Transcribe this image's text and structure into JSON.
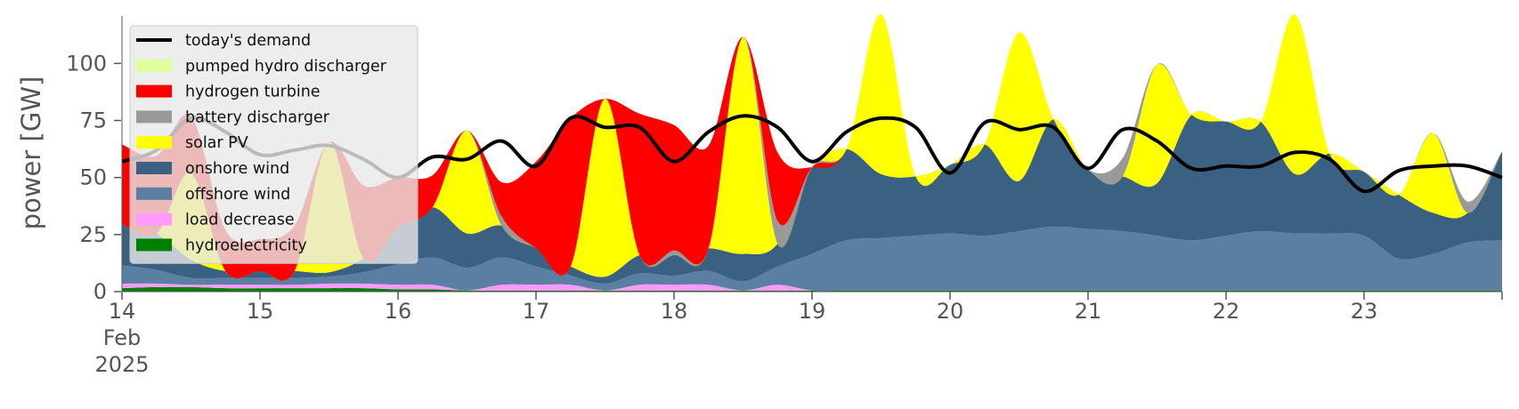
{
  "chart_data": {
    "type": "area",
    "title": "",
    "xlabel": "",
    "ylabel": "power [GW]",
    "ylim": [
      0,
      120
    ],
    "y_ticks": [
      0,
      25,
      50,
      75,
      100
    ],
    "x_range": [
      "2025-02-14T00:00",
      "2025-02-24T00:00"
    ],
    "x_tick_labels": [
      {
        "at": "2025-02-14",
        "lines": [
          "14",
          "Feb",
          "2025"
        ]
      },
      {
        "at": "2025-02-15",
        "lines": [
          "15"
        ]
      },
      {
        "at": "2025-02-16",
        "lines": [
          "16"
        ]
      },
      {
        "at": "2025-02-17",
        "lines": [
          "17"
        ]
      },
      {
        "at": "2025-02-18",
        "lines": [
          "18"
        ]
      },
      {
        "at": "2025-02-19",
        "lines": [
          "19"
        ]
      },
      {
        "at": "2025-02-20",
        "lines": [
          "20"
        ]
      },
      {
        "at": "2025-02-21",
        "lines": [
          "21"
        ]
      },
      {
        "at": "2025-02-22",
        "lines": [
          "22"
        ]
      },
      {
        "at": "2025-02-23",
        "lines": [
          "23"
        ]
      }
    ],
    "grid": false,
    "legend_position": "top-left",
    "time_days": [
      0,
      0.25,
      0.5,
      0.75,
      1,
      1.25,
      1.5,
      1.75,
      2,
      2.25,
      2.5,
      2.75,
      3,
      3.25,
      3.5,
      3.75,
      4,
      4.25,
      4.5,
      4.75,
      5,
      5.25,
      5.5,
      5.75,
      6,
      6.25,
      6.5,
      6.75,
      7,
      7.25,
      7.5,
      7.75,
      8,
      8.25,
      8.5,
      8.75,
      9,
      9.25,
      9.5,
      9.75,
      10
    ],
    "stack_order": [
      "hydroelectricity",
      "load decrease",
      "offshore wind",
      "onshore wind",
      "solar PV",
      "battery discharger",
      "hydrogen turbine",
      "pumped hydro discharger"
    ],
    "series": [
      {
        "name": "hydroelectricity",
        "color": "#008000",
        "values": [
          1.5,
          2,
          2,
          1.5,
          1.5,
          1.5,
          1.5,
          1.5,
          1,
          1,
          0.5,
          0.5,
          0.5,
          0.5,
          0.5,
          0.5,
          0.5,
          0.5,
          0.5,
          0.5,
          0.5,
          0.5,
          0.5,
          0.5,
          0.5,
          0.5,
          0.5,
          0.5,
          0.5,
          0.5,
          0.5,
          0.5,
          0.5,
          0.5,
          0.5,
          0.5,
          0.5,
          0.5,
          0.5,
          0.5,
          0.5
        ]
      },
      {
        "name": "load decrease",
        "color": "#ff99ff",
        "values": [
          2,
          1.5,
          1,
          1.5,
          1.5,
          1.5,
          2,
          2,
          2,
          2,
          0,
          2.5,
          2.5,
          2.5,
          0,
          2.5,
          2.5,
          2.5,
          0,
          2.5,
          0,
          0,
          0,
          0,
          0,
          0,
          0,
          0,
          0,
          0,
          0,
          0,
          0,
          0,
          0,
          0,
          0,
          0,
          0,
          0,
          0
        ]
      },
      {
        "name": "offshore wind",
        "color": "#5b7fa3",
        "values": [
          8,
          6,
          3,
          3,
          3,
          3,
          3,
          5,
          9,
          12,
          10,
          12,
          8,
          4,
          3,
          5,
          4,
          6,
          4,
          8,
          16,
          22,
          23,
          24,
          25,
          24,
          26,
          28,
          27,
          26,
          24,
          22,
          24,
          26,
          25,
          25,
          24,
          14,
          16,
          21,
          22
        ]
      },
      {
        "name": "onshore wind",
        "color": "#3b6182",
        "values": [
          18,
          16,
          8,
          3,
          3,
          3,
          2,
          6,
          16,
          22,
          15,
          14,
          8,
          4,
          3,
          8,
          9,
          10,
          12,
          10,
          38,
          40,
          28,
          26,
          30,
          40,
          22,
          47,
          26,
          24,
          23,
          55,
          50,
          48,
          26,
          35,
          28,
          28,
          18,
          13,
          39
        ]
      },
      {
        "name": "solar PV",
        "color": "#ffff00",
        "values": [
          0,
          0,
          38,
          0,
          0,
          0,
          57,
          0,
          0,
          0,
          45,
          0,
          0,
          0,
          78,
          0,
          0,
          0,
          95,
          0,
          0,
          0,
          70,
          0,
          0,
          0,
          65,
          0,
          0,
          0,
          52,
          0,
          0,
          0,
          70,
          0,
          0,
          0,
          35,
          0,
          0
        ]
      },
      {
        "name": "battery discharger",
        "color": "#999999",
        "values": [
          0,
          0,
          0,
          0,
          0,
          0,
          0,
          0,
          0,
          0,
          0,
          4,
          0,
          0,
          0,
          0,
          2,
          0,
          0,
          10,
          0,
          0,
          0,
          0,
          0,
          0,
          0,
          0,
          0,
          8,
          0,
          0,
          0,
          0,
          0,
          0,
          0,
          0,
          0,
          5,
          0
        ]
      },
      {
        "name": "hydrogen turbine",
        "color": "#ff0000",
        "values": [
          35,
          34,
          25,
          18,
          14,
          20,
          0,
          32,
          22,
          14,
          0,
          15,
          38,
          65,
          0,
          62,
          55,
          45,
          0,
          30,
          0,
          0,
          0,
          0,
          0,
          0,
          0,
          0,
          0,
          0,
          0,
          0,
          0,
          0,
          0,
          0,
          0,
          0,
          0,
          0,
          0
        ]
      },
      {
        "name": "pumped hydro discharger",
        "color": "#dfff9e",
        "values": [
          0,
          0,
          0,
          0,
          0,
          0,
          0,
          0,
          0,
          0,
          0,
          0,
          0,
          0,
          0,
          0,
          0,
          0,
          0,
          0,
          0,
          0,
          0,
          0,
          0,
          0,
          0,
          0,
          0,
          0,
          0,
          0,
          0,
          0,
          0,
          0,
          0,
          0,
          0,
          0,
          0
        ]
      },
      {
        "name": "today's demand",
        "type": "line",
        "color": "#000000",
        "values": [
          57,
          62,
          76,
          70,
          60,
          62,
          64,
          58,
          50,
          59,
          58,
          66,
          55,
          76,
          72,
          72,
          57,
          70,
          77,
          72,
          57,
          70,
          76,
          72,
          52,
          74,
          71,
          72,
          54,
          71,
          66,
          54,
          55,
          55,
          61,
          58,
          44,
          53,
          55,
          55,
          50
        ]
      }
    ],
    "legend": [
      "today's demand",
      "pumped hydro discharger",
      "hydrogen turbine",
      "battery discharger",
      "solar PV",
      "onshore wind",
      "offshore wind",
      "load decrease",
      "hydroelectricity"
    ]
  }
}
